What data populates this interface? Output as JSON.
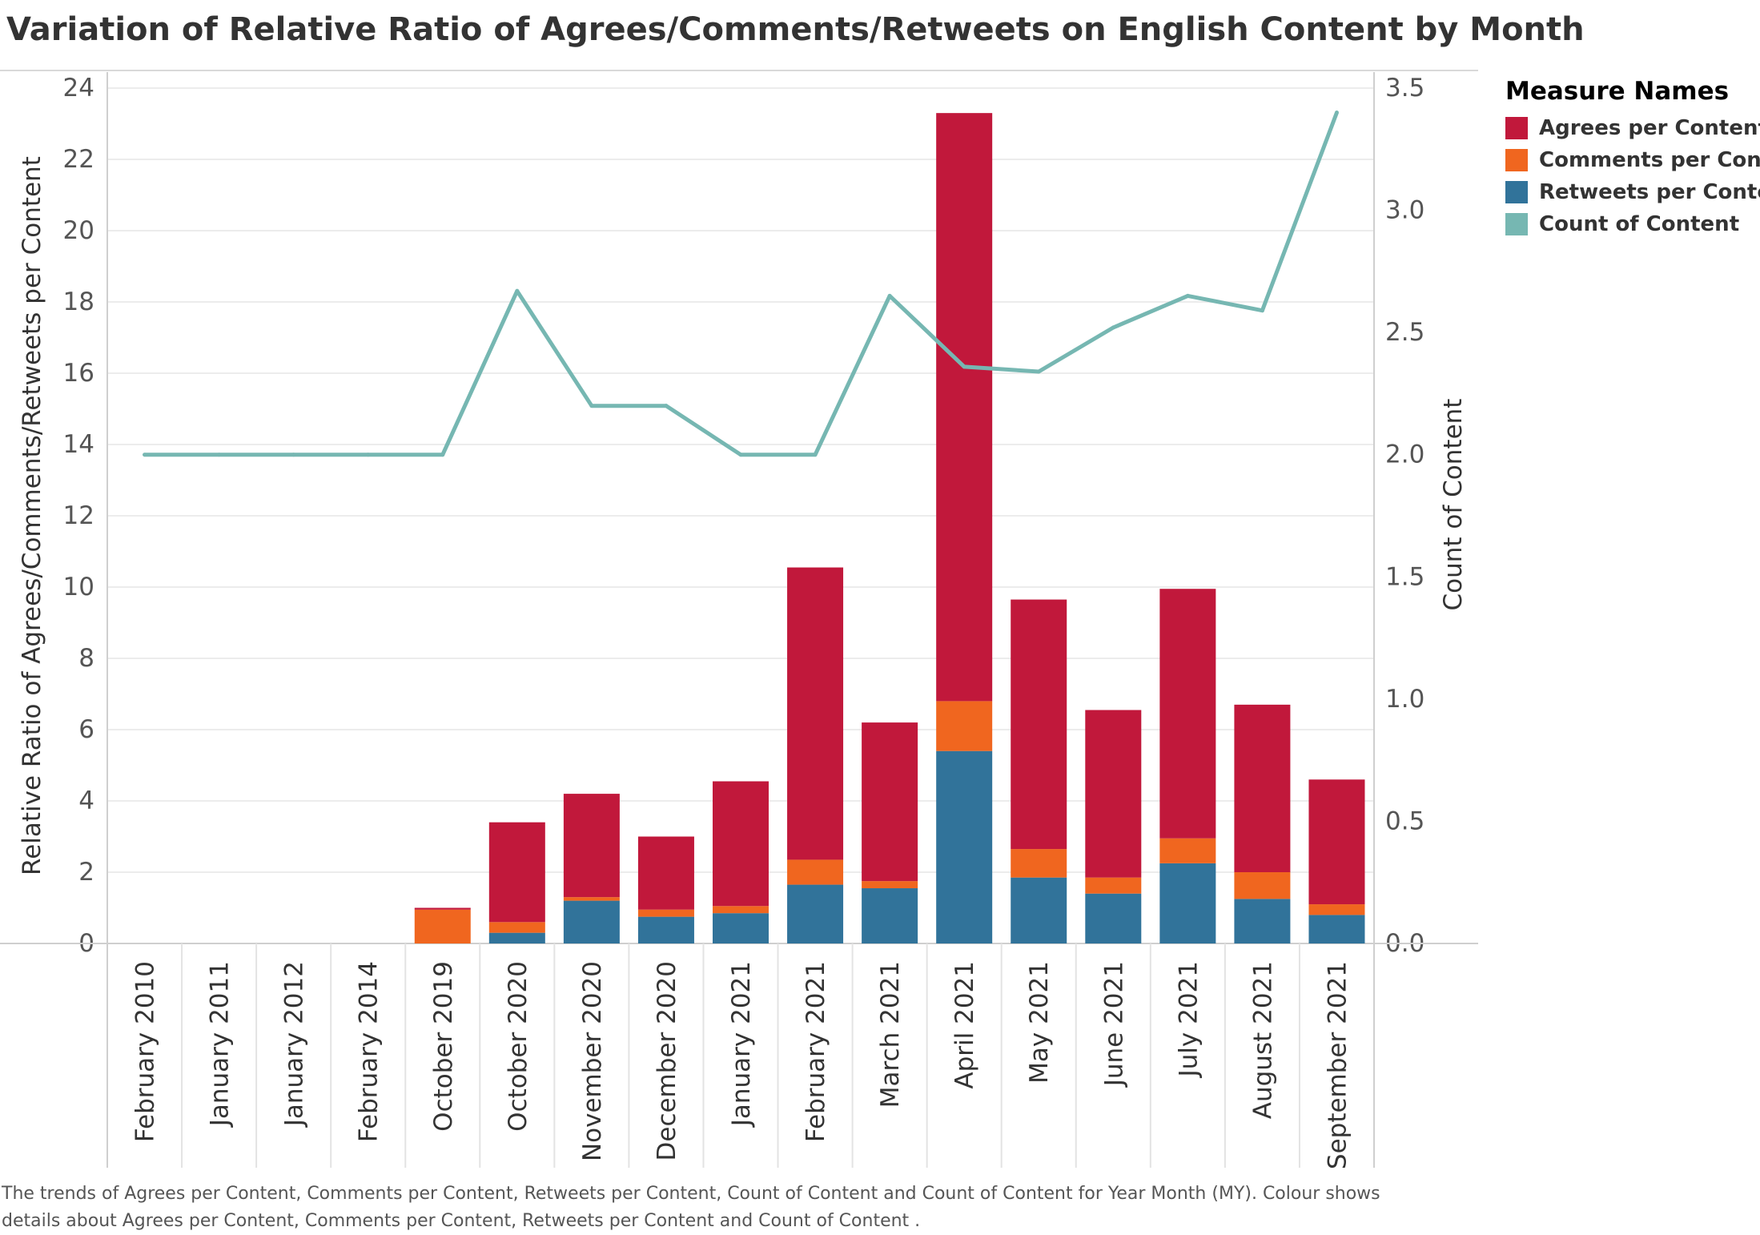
{
  "chart_data": {
    "type": "bar",
    "title": "Variation of Relative Ratio of  Agrees/Comments/Retweets on English Content by Month",
    "categories": [
      "February 2010",
      "January 2011",
      "January 2012",
      "February 2014",
      "October 2019",
      "October 2020",
      "November 2020",
      "December 2020",
      "January 2021",
      "February 2021",
      "March 2021",
      "April 2021",
      "May 2021",
      "June 2021",
      "July 2021",
      "August 2021",
      "September 2021"
    ],
    "stacked": true,
    "series": [
      {
        "name": "Retweets per Content",
        "color": "#31739a",
        "values": [
          0,
          0,
          0,
          0,
          0,
          0.3,
          1.2,
          0.75,
          0.85,
          1.65,
          1.55,
          5.4,
          1.85,
          1.4,
          2.25,
          1.25,
          0.8
        ]
      },
      {
        "name": "Comments per Content",
        "color": "#f0661f",
        "values": [
          0,
          0,
          0,
          0,
          0.95,
          0.3,
          0.1,
          0.2,
          0.2,
          0.7,
          0.2,
          1.4,
          0.8,
          0.45,
          0.7,
          0.75,
          0.3
        ]
      },
      {
        "name": "Agrees per Content",
        "color": "#c1183b",
        "values": [
          0,
          0,
          0,
          0,
          0.05,
          2.8,
          2.9,
          2.05,
          3.5,
          8.2,
          4.45,
          16.5,
          7.0,
          4.7,
          7.0,
          4.7,
          3.5
        ]
      }
    ],
    "line_series": {
      "name": "Count of Content",
      "color": "#76b7b2",
      "axis": "right",
      "values": [
        2,
        2,
        2,
        2,
        2,
        2.67,
        2.2,
        2.2,
        2,
        2,
        2.65,
        2.36,
        2.34,
        2.52,
        2.65,
        2.59,
        3.4
      ]
    },
    "ylabel": "Relative Ratio of Agrees/Comments/Retweets per Content",
    "ylim": [
      0,
      24
    ],
    "yticks": [
      0,
      2,
      4,
      6,
      8,
      10,
      12,
      14,
      16,
      18,
      20,
      22,
      24
    ],
    "y2label": "Count of Content",
    "y2lim": [
      0,
      3.5
    ],
    "y2ticks": [
      "0.0",
      "0.5",
      "1.0",
      "1.5",
      "2.0",
      "2.5",
      "3.0",
      "3.5"
    ],
    "grid": true,
    "legend_placement": "right"
  },
  "legend": {
    "title": "Measure Names",
    "items": [
      {
        "label": "Agrees per Content",
        "color": "#c1183b"
      },
      {
        "label": "Comments per Content",
        "color": "#f0661f"
      },
      {
        "label": "Retweets per Content",
        "color": "#31739a"
      },
      {
        "label": "Count of Content",
        "color": "#76b7b2"
      }
    ]
  },
  "caption": "The trends of Agrees per Content, Comments per Content, Retweets per Content, Count of Content  and Count of Content  for Year Month (MY).  Colour shows details about Agrees per Content, Comments per Content, Retweets per Content and Count of Content ."
}
